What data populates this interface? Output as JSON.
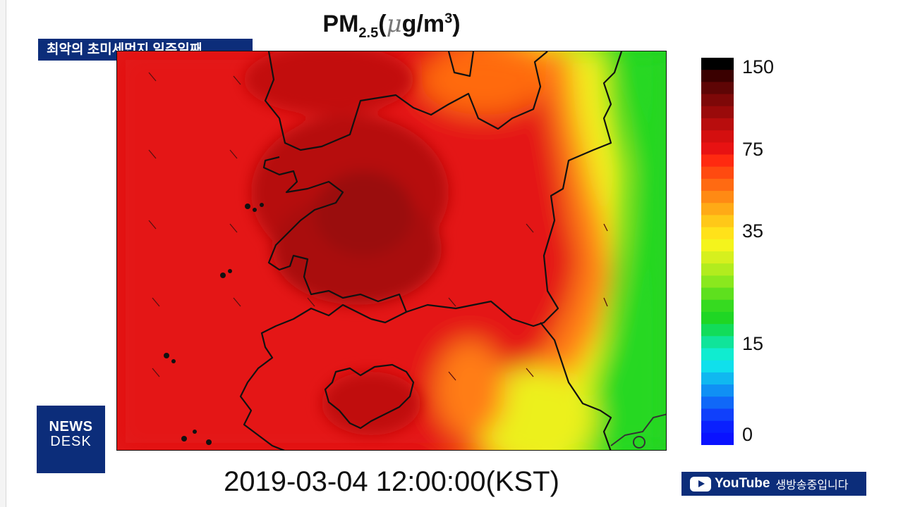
{
  "broadcast": {
    "headline": "최악의 초미세먼지 일주일째",
    "logo_line1": "NEWS",
    "logo_line2": "DESK",
    "youtube_brand": "YouTube",
    "youtube_status": "생방송중입니다"
  },
  "map": {
    "title_main": "PM",
    "title_sub": "2.5",
    "title_open": "(",
    "title_mu": "μ",
    "title_unit": "g/m",
    "title_sup": "3",
    "title_close": ")",
    "timestamp": "2019-03-04 12:00:00(KST)",
    "colorbar_ticks": [
      {
        "label": "150",
        "value": 150
      },
      {
        "label": "75",
        "value": 75
      },
      {
        "label": "35",
        "value": 35
      },
      {
        "label": "15",
        "value": 15
      },
      {
        "label": "0",
        "value": 0
      }
    ],
    "colors": {
      "very_high": "#5e0505",
      "high": "#e01212",
      "orange": "#ff7a10",
      "yellow": "#f3f21a",
      "green": "#26d820",
      "cyan": "#10ecec",
      "blue": "#0a12ff"
    }
  }
}
